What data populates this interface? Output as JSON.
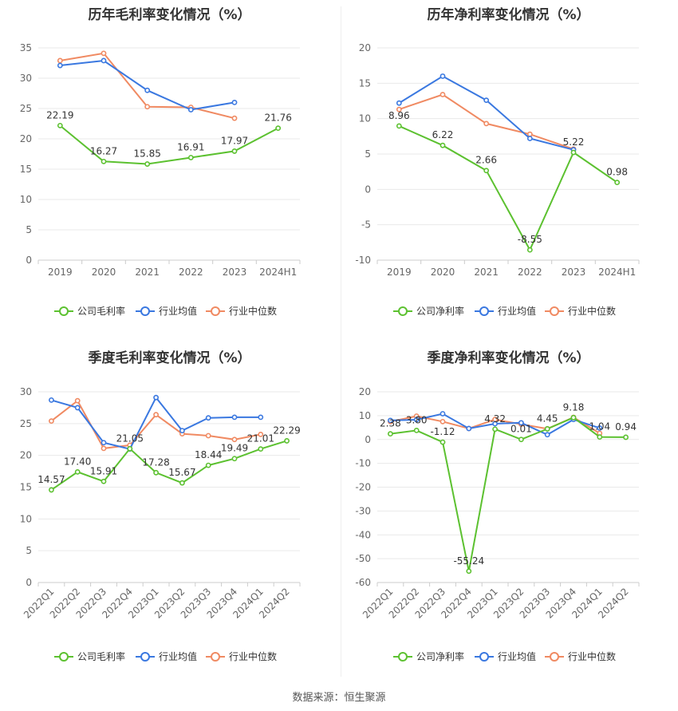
{
  "footer": {
    "source": "数据来源：恒生聚源"
  },
  "colors": {
    "company": "#5cc130",
    "industry_avg": "#3a78e0",
    "industry_median": "#f08a62"
  },
  "chart_data": [
    {
      "id": "annual-gross",
      "title": "历年毛利率变化情况（%）",
      "type": "line",
      "categories": [
        "2019",
        "2020",
        "2021",
        "2022",
        "2023",
        "2024H1"
      ],
      "ylim": [
        0,
        35
      ],
      "yticks": [
        0,
        5,
        10,
        15,
        20,
        25,
        30,
        35
      ],
      "grid": true,
      "legend_position": "bottom",
      "series": [
        {
          "name": "公司毛利率",
          "color": "#5cc130",
          "labels": true,
          "values": [
            22.19,
            16.27,
            15.85,
            16.91,
            17.97,
            21.76
          ]
        },
        {
          "name": "行业均值",
          "color": "#3a78e0",
          "labels": false,
          "values": [
            32.1,
            32.9,
            28.0,
            24.8,
            26.0,
            null
          ]
        },
        {
          "name": "行业中位数",
          "color": "#f08a62",
          "labels": false,
          "values": [
            32.9,
            34.1,
            25.3,
            25.2,
            23.4,
            null
          ]
        }
      ]
    },
    {
      "id": "annual-net",
      "title": "历年净利率变化情况（%）",
      "type": "line",
      "categories": [
        "2019",
        "2020",
        "2021",
        "2022",
        "2023",
        "2024H1"
      ],
      "ylim": [
        -10,
        20
      ],
      "yticks": [
        -10,
        -5,
        0,
        5,
        10,
        15,
        20
      ],
      "grid": true,
      "legend_position": "bottom",
      "series": [
        {
          "name": "公司净利率",
          "color": "#5cc130",
          "labels": true,
          "values": [
            8.96,
            6.22,
            2.66,
            -8.55,
            5.22,
            0.98
          ]
        },
        {
          "name": "行业均值",
          "color": "#3a78e0",
          "labels": false,
          "values": [
            12.2,
            16.0,
            12.6,
            7.2,
            5.6,
            null
          ]
        },
        {
          "name": "行业中位数",
          "color": "#f08a62",
          "labels": false,
          "values": [
            11.3,
            13.4,
            9.3,
            7.8,
            5.7,
            null
          ]
        }
      ]
    },
    {
      "id": "quarterly-gross",
      "title": "季度毛利率变化情况（%）",
      "type": "line",
      "categories": [
        "2022Q1",
        "2022Q2",
        "2022Q3",
        "2022Q4",
        "2023Q1",
        "2023Q2",
        "2023Q3",
        "2023Q4",
        "2024Q1",
        "2024Q2"
      ],
      "ylim": [
        0,
        30
      ],
      "yticks": [
        0,
        5,
        10,
        15,
        20,
        25,
        30
      ],
      "grid": true,
      "legend_position": "bottom",
      "series": [
        {
          "name": "公司毛利率",
          "color": "#5cc130",
          "labels": true,
          "values": [
            14.57,
            17.4,
            15.91,
            21.05,
            17.28,
            15.67,
            18.44,
            19.49,
            21.01,
            22.29
          ]
        },
        {
          "name": "行业均值",
          "color": "#3a78e0",
          "labels": false,
          "values": [
            28.7,
            27.5,
            22.0,
            21.0,
            29.1,
            23.9,
            25.9,
            26.0,
            26.0,
            null
          ]
        },
        {
          "name": "行业中位数",
          "color": "#f08a62",
          "labels": false,
          "values": [
            25.4,
            28.6,
            21.1,
            21.6,
            26.4,
            23.4,
            23.1,
            22.5,
            23.3,
            null
          ]
        }
      ]
    },
    {
      "id": "quarterly-net",
      "title": "季度净利率变化情况（%）",
      "type": "line",
      "categories": [
        "2022Q1",
        "2022Q2",
        "2022Q3",
        "2022Q4",
        "2023Q1",
        "2023Q2",
        "2023Q3",
        "2023Q4",
        "2024Q1",
        "2024Q2"
      ],
      "ylim": [
        -60,
        20
      ],
      "yticks": [
        -60,
        -50,
        -40,
        -30,
        -20,
        -10,
        0,
        10,
        20
      ],
      "grid": true,
      "legend_position": "bottom",
      "series": [
        {
          "name": "公司净利率",
          "color": "#5cc130",
          "labels": true,
          "values": [
            2.38,
            3.8,
            -1.12,
            -55.24,
            4.32,
            0.01,
            4.45,
            9.18,
            1.04,
            0.94
          ]
        },
        {
          "name": "行业均值",
          "color": "#3a78e0",
          "labels": false,
          "values": [
            8.0,
            8.3,
            10.8,
            4.6,
            6.6,
            7.0,
            2.0,
            8.4,
            4.8,
            null
          ]
        },
        {
          "name": "行业中位数",
          "color": "#f08a62",
          "labels": false,
          "values": [
            7.5,
            9.8,
            7.5,
            4.6,
            8.4,
            6.4,
            4.5,
            9.3,
            2.6,
            null
          ]
        }
      ]
    }
  ]
}
